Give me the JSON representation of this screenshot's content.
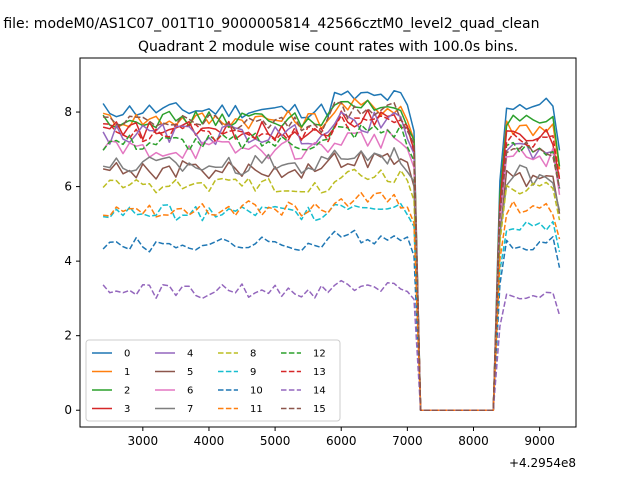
{
  "figure": {
    "suptitle": "n file: modeM0/AS1C07_001T10_9000005814_42566cztM0_level2_quad_clean",
    "title": "Quadrant 2 module wise count rates with 100.0s bins.",
    "x_offset_label": "+4.2954e8"
  },
  "chart_data": {
    "type": "line",
    "title": "Quadrant 2 module wise count rates with 100.0s bins.",
    "xlabel": "",
    "ylabel": "",
    "x_offset": 429540000,
    "xlim": [
      2050,
      9550
    ],
    "ylim": [
      -0.45,
      9.45
    ],
    "xticks": [
      3000,
      4000,
      5000,
      6000,
      7000,
      8000,
      9000
    ],
    "yticks": [
      0,
      2,
      4,
      6,
      8
    ],
    "grid": false,
    "legend": {
      "placement": "lower-left",
      "ncol": 4
    },
    "gap": {
      "start": 7100,
      "end": 8300,
      "value": 0
    },
    "x_range": [
      2400,
      9300
    ],
    "bin_width": 100,
    "series": [
      {
        "name": "0",
        "color": "#1f77b4",
        "style": "solid",
        "level_before": 8.05,
        "level_after": 8.2,
        "noise": 0.22
      },
      {
        "name": "1",
        "color": "#ff7f0e",
        "style": "solid",
        "level_before": 7.8,
        "level_after": 7.6,
        "noise": 0.25
      },
      {
        "name": "2",
        "color": "#2ca02c",
        "style": "solid",
        "level_before": 7.8,
        "level_after": 7.7,
        "noise": 0.22
      },
      {
        "name": "3",
        "color": "#d62728",
        "style": "solid",
        "level_before": 7.5,
        "level_after": 7.3,
        "noise": 0.25
      },
      {
        "name": "4",
        "color": "#9467bd",
        "style": "solid",
        "level_before": 7.4,
        "level_after": 7.0,
        "noise": 0.28
      },
      {
        "name": "5",
        "color": "#8c564b",
        "style": "solid",
        "level_before": 6.45,
        "level_after": 6.2,
        "noise": 0.25
      },
      {
        "name": "6",
        "color": "#e377c2",
        "style": "solid",
        "level_before": 7.0,
        "level_after": 6.8,
        "noise": 0.28
      },
      {
        "name": "7",
        "color": "#7f7f7f",
        "style": "solid",
        "level_before": 6.6,
        "level_after": 6.3,
        "noise": 0.28
      },
      {
        "name": "8",
        "color": "#bcbd22",
        "style": "dashed",
        "level_before": 6.05,
        "level_after": 6.0,
        "noise": 0.22
      },
      {
        "name": "9",
        "color": "#17becf",
        "style": "dashed",
        "level_before": 5.3,
        "level_after": 5.0,
        "noise": 0.22
      },
      {
        "name": "10",
        "color": "#1f77b4",
        "style": "dashed",
        "level_before": 4.45,
        "level_after": 4.5,
        "noise": 0.2
      },
      {
        "name": "11",
        "color": "#ff7f0e",
        "style": "dashed",
        "level_before": 5.4,
        "level_after": 5.4,
        "noise": 0.22
      },
      {
        "name": "12",
        "color": "#2ca02c",
        "style": "dashed",
        "level_before": 7.2,
        "level_after": 7.0,
        "noise": 0.25
      },
      {
        "name": "13",
        "color": "#d62728",
        "style": "dashed",
        "level_before": 7.45,
        "level_after": 7.3,
        "noise": 0.25
      },
      {
        "name": "14",
        "color": "#9467bd",
        "style": "dashed",
        "level_before": 3.2,
        "level_after": 3.0,
        "noise": 0.2
      },
      {
        "name": "15",
        "color": "#8c564b",
        "style": "dashed",
        "level_before": 7.7,
        "level_after": 7.0,
        "noise": 0.25
      }
    ]
  }
}
